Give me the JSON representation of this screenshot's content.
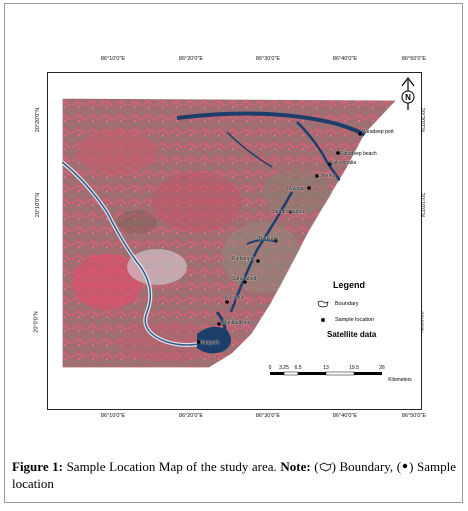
{
  "map": {
    "lon_labels": [
      "86°10'0\"E",
      "86°20'0\"E",
      "86°30'0\"E",
      "86°40'0\"E",
      "86°50'0\"E"
    ],
    "lat_labels": [
      "20°20'0\"N",
      "20°10'0\"N",
      "20°0'0\"N"
    ],
    "north_letter": "N",
    "places": [
      {
        "name": "Paradeep port"
      },
      {
        "name": "Paradeep beach"
      },
      {
        "name": "Kaleshpatia"
      },
      {
        "name": "Dhenka"
      },
      {
        "name": "Malagan"
      },
      {
        "name": "Jatadhartanda"
      },
      {
        "name": "Berkuda"
      },
      {
        "name": "Padampur"
      },
      {
        "name": "Saharabedi"
      },
      {
        "name": "Kusupur"
      },
      {
        "name": "Mankadkhia"
      },
      {
        "name": "Nuagarh"
      }
    ],
    "legend": {
      "title": "Legend",
      "boundary_label": "Boundary",
      "sample_label": "Sample location",
      "satellite_label": "Satellite data"
    },
    "scale": {
      "ticks": [
        "0",
        "3.25",
        "6.5",
        "13",
        "19.5",
        "26"
      ],
      "unit": "Kilometers"
    },
    "colors": {
      "vegetation": "#c6556a",
      "land": "#8d8377",
      "water": "#1d3e6b",
      "border": "#222222"
    }
  },
  "caption": {
    "label": "Figure 1:",
    "text1": " Sample Location Map of the study area. ",
    "note_label": "Note:",
    "text2": " (",
    "text3": ") Boundary, (",
    "text4": ") Sample location"
  }
}
